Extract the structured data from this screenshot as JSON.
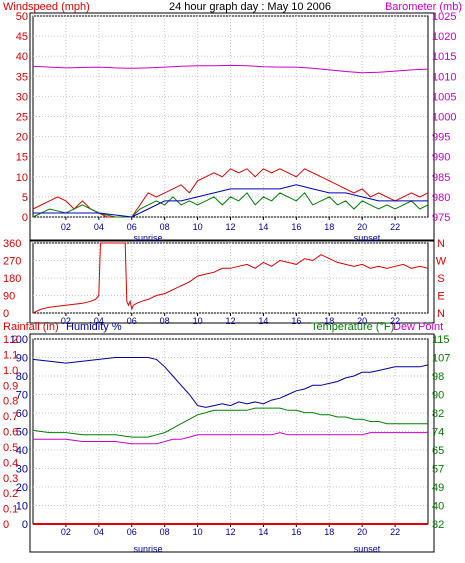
{
  "header": {
    "title": "24 hour graph day : May 10 2006",
    "windspeed_label": "Windspeed (mph)",
    "barometer_label": "Barometer (mb)"
  },
  "panel_wind": {
    "wind_ticks": [
      "0",
      "5",
      "10",
      "15",
      "20",
      "25",
      "30",
      "35",
      "40",
      "45",
      "50"
    ],
    "baro_ticks": [
      "975",
      "980",
      "985",
      "990",
      "995",
      "1000",
      "1005",
      "1010",
      "1015",
      "1020",
      "1025"
    ],
    "hour_ticks": [
      "02",
      "04",
      "06",
      "08",
      "10",
      "12",
      "14",
      "16",
      "18",
      "20",
      "22"
    ],
    "sunrise": "sunrise",
    "sunset": "sunset"
  },
  "panel_dir": {
    "deg_ticks": [
      "0",
      "90",
      "180",
      "270",
      "360"
    ],
    "compass": [
      "N",
      "W",
      "S",
      "E",
      "N"
    ],
    "hour_ticks": [
      "02",
      "04",
      "06",
      "08",
      "10",
      "12",
      "14",
      "16",
      "18",
      "20",
      "22"
    ]
  },
  "panel_weather": {
    "rainfall_label": "Rainfall (in)",
    "humidity_label": "Humidity %",
    "temperature_label": "Temperature (°F)",
    "dewpoint_label": "Dew Point",
    "rain_ticks": [
      "0",
      "0.1",
      "0.2",
      "0.3",
      "0.4",
      "0.5",
      "0.6",
      "0.7",
      "0.8",
      "0.9",
      "1.0",
      "1.1",
      "1.2"
    ],
    "humidity_ticks": [
      "0",
      "10",
      "20",
      "30",
      "40",
      "50",
      "60",
      "70",
      "80",
      "90",
      "100"
    ],
    "temp_ticks": [
      "32",
      "40",
      "49",
      "57",
      "65",
      "74",
      "82",
      "90",
      "98",
      "107",
      "115"
    ],
    "hour_ticks": [
      "02",
      "04",
      "06",
      "08",
      "10",
      "12",
      "14",
      "16",
      "18",
      "20",
      "22"
    ],
    "sunrise": "sunrise",
    "sunset": "sunset"
  },
  "colors": {
    "windspeed": "#e00000",
    "gust": "#0000c0",
    "avg_wind": "#008000",
    "barometer": "#cc00cc",
    "humidity": "#0000a0",
    "temperature": "#008000",
    "dewpoint": "#cc00cc",
    "rainfall": "#e00000",
    "wind_direction": "#e00000"
  },
  "chart_data": [
    {
      "type": "line",
      "title": "24 hour graph day : May 10 2006",
      "xlabel": "",
      "ylabel": "Windspeed (mph)",
      "y2label": "Barometer (mb)",
      "xlim": [
        0,
        24
      ],
      "ylim": [
        0,
        50
      ],
      "y2lim": [
        975,
        1025
      ],
      "grid": true,
      "series": [
        {
          "axis": "left",
          "x": [
            0,
            1,
            1.5,
            2,
            2.5,
            3,
            3.5,
            4,
            4.5,
            5,
            5.5,
            6,
            6.5,
            7,
            7.5,
            8,
            8.5,
            9,
            9.5,
            10,
            10.5,
            11,
            11.5,
            12,
            12.5,
            13,
            13.5,
            14,
            14.5,
            15,
            15.5,
            16,
            16.5,
            17,
            17.5,
            18,
            18.5,
            19,
            19.5,
            20,
            20.5,
            21,
            21.5,
            22,
            22.5,
            23,
            23.5,
            24
          ],
          "values": [
            2,
            4,
            5,
            4,
            2,
            4,
            2,
            1,
            0,
            0,
            0,
            0,
            3,
            6,
            5,
            6,
            7,
            8,
            6,
            9,
            10,
            11,
            10,
            12,
            11,
            12,
            10,
            12,
            11,
            12,
            11,
            10,
            12,
            11,
            10,
            9,
            8,
            7,
            6,
            7,
            5,
            6,
            5,
            4,
            5,
            6,
            5,
            6
          ]
        },
        {
          "axis": "left",
          "x": [
            0,
            2,
            4,
            6,
            7,
            8,
            9,
            10,
            11,
            12,
            13,
            14,
            15,
            16,
            17,
            18,
            19,
            20,
            21,
            22,
            23,
            24
          ],
          "values": [
            1,
            1,
            1,
            0,
            2,
            4,
            4,
            5,
            6,
            7,
            7,
            7,
            7,
            8,
            7,
            6,
            6,
            5,
            4,
            4,
            4,
            4
          ]
        },
        {
          "axis": "left",
          "x": [
            0,
            1,
            2,
            3,
            4,
            5,
            6,
            6.5,
            7,
            7.5,
            8,
            8.5,
            9,
            9.5,
            10,
            10.5,
            11,
            11.5,
            12,
            12.5,
            13,
            13.5,
            14,
            14.5,
            15,
            15.5,
            16,
            16.5,
            17,
            17.5,
            18,
            18.5,
            19,
            19.5,
            20,
            20.5,
            21,
            21.5,
            22,
            22.5,
            23,
            23.5,
            24
          ],
          "values": [
            0,
            2,
            1,
            3,
            1,
            0,
            0,
            2,
            3,
            4,
            3,
            5,
            3,
            4,
            3,
            4,
            5,
            3,
            5,
            4,
            6,
            3,
            5,
            4,
            6,
            5,
            4,
            6,
            3,
            4,
            5,
            3,
            4,
            2,
            4,
            3,
            2,
            3,
            2,
            3,
            4,
            2,
            3
          ]
        },
        {
          "axis": "right",
          "x": [
            0,
            1,
            2,
            3,
            4,
            5,
            6,
            7,
            8,
            9,
            10,
            11,
            12,
            13,
            14,
            15,
            16,
            17,
            18,
            19,
            20,
            21,
            22,
            23,
            24
          ],
          "values": [
            1012.5,
            1012.3,
            1012.1,
            1012.2,
            1012.3,
            1012.1,
            1012.0,
            1012.1,
            1012.3,
            1012.5,
            1012.6,
            1012.6,
            1012.7,
            1012.6,
            1012.4,
            1012.3,
            1012.3,
            1012.0,
            1011.6,
            1011.2,
            1010.9,
            1011.0,
            1011.3,
            1011.6,
            1011.8
          ]
        }
      ]
    },
    {
      "type": "line",
      "xlabel": "",
      "ylabel": "",
      "xlim": [
        0,
        24
      ],
      "ylim": [
        0,
        360
      ],
      "grid": true,
      "series": [
        {
          "x": [
            0,
            0.5,
            1,
            2,
            3,
            3.5,
            3.8,
            4,
            4.1,
            4.3,
            4.4,
            5.5,
            5.6,
            5.7,
            5.8,
            5.9,
            6.0,
            6.1,
            6.3,
            6.6,
            7,
            7.5,
            8,
            8.5,
            9,
            9.5,
            10,
            10.5,
            11,
            11.5,
            12,
            12.5,
            13,
            13.5,
            14,
            14.5,
            15,
            15.5,
            16,
            16.5,
            17,
            17.5,
            18,
            18.5,
            19,
            19.5,
            20,
            20.5,
            21,
            21.5,
            22,
            22.5,
            23,
            23.5,
            24
          ],
          "values": [
            0,
            20,
            30,
            40,
            50,
            60,
            70,
            90,
            360,
            360,
            360,
            360,
            360,
            60,
            40,
            60,
            20,
            40,
            50,
            60,
            70,
            90,
            100,
            120,
            140,
            160,
            190,
            200,
            210,
            230,
            230,
            240,
            250,
            230,
            260,
            240,
            270,
            260,
            250,
            280,
            270,
            300,
            280,
            260,
            250,
            240,
            250,
            230,
            240,
            230,
            240,
            250,
            230,
            240,
            230
          ]
        }
      ]
    },
    {
      "type": "line",
      "xlabel": "",
      "ylabel": "Rainfall (in)",
      "y2label": "Temperature (°F)",
      "xlim": [
        0,
        24
      ],
      "ylim": [
        0,
        100
      ],
      "y2lim": [
        32,
        115
      ],
      "grid": true,
      "series": [
        {
          "name": "Humidity %",
          "axis": "left",
          "x": [
            0,
            1,
            2,
            3,
            4,
            5,
            6,
            7,
            7.5,
            8,
            8.5,
            9,
            9.5,
            10,
            10.5,
            11,
            11.5,
            12,
            12.5,
            13,
            13.5,
            14,
            14.5,
            15,
            15.5,
            16,
            16.5,
            17,
            17.5,
            18,
            18.5,
            19,
            19.5,
            20,
            20.5,
            21,
            21.5,
            22,
            22.5,
            23,
            23.5,
            24
          ],
          "values": [
            89,
            88,
            87,
            88,
            89,
            90,
            90,
            90,
            89,
            85,
            80,
            75,
            70,
            64,
            63,
            64,
            65,
            64,
            66,
            65,
            66,
            65,
            67,
            68,
            70,
            72,
            73,
            75,
            75,
            76,
            77,
            79,
            80,
            82,
            82,
            83,
            84,
            85,
            85,
            85,
            85,
            86
          ]
        },
        {
          "name": "Temperature (°F)",
          "axis": "right",
          "x": [
            0,
            1,
            2,
            3,
            4,
            5,
            6,
            7,
            7.5,
            8,
            8.5,
            9,
            9.5,
            10,
            10.5,
            11,
            11.5,
            12,
            12.5,
            13,
            13.5,
            14,
            14.5,
            15,
            15.5,
            16,
            16.5,
            17,
            17.5,
            18,
            18.5,
            19,
            19.5,
            20,
            20.5,
            21,
            21.5,
            22,
            22.5,
            23,
            23.5,
            24
          ],
          "values": [
            74,
            73,
            73,
            72,
            72,
            72,
            71,
            71,
            72,
            73,
            75,
            77,
            79,
            81,
            82,
            83,
            83,
            83,
            83,
            83,
            84,
            84,
            84,
            84,
            83,
            83,
            82,
            82,
            81,
            81,
            80,
            80,
            79,
            79,
            78,
            78,
            77,
            77,
            77,
            77,
            77,
            77
          ]
        },
        {
          "name": "Dew Point",
          "axis": "right",
          "x": [
            0,
            1,
            2,
            3,
            4,
            5,
            6,
            6.5,
            7,
            7.5,
            8,
            8.5,
            9,
            9.5,
            10,
            10.5,
            11,
            11.5,
            12,
            12.5,
            13,
            13.5,
            14,
            14.5,
            15,
            15.5,
            16,
            16.5,
            17,
            17.5,
            18,
            18.5,
            19,
            19.5,
            20,
            20.5,
            21,
            21.5,
            22,
            22.5,
            23,
            23.5,
            24
          ],
          "values": [
            70,
            70,
            70,
            69,
            69,
            69,
            68,
            68,
            68,
            68,
            69,
            70,
            70,
            71,
            72,
            72,
            72,
            72,
            72,
            72,
            72,
            72,
            72,
            72,
            73,
            72,
            72,
            72,
            72,
            72,
            72,
            72,
            72,
            72,
            72,
            73,
            73,
            73,
            73,
            73,
            73,
            73,
            73
          ]
        },
        {
          "name": "Rainfall (in)",
          "axis": "left",
          "x": [
            0,
            24
          ],
          "values": [
            0,
            0
          ]
        }
      ]
    }
  ]
}
